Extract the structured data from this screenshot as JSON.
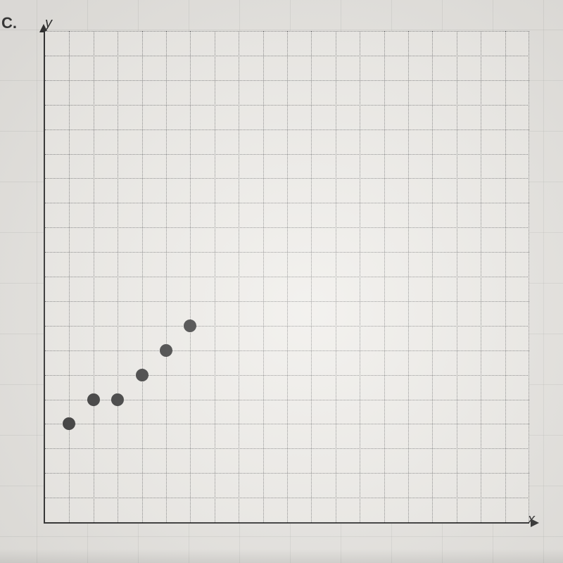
{
  "problem_label": "C.",
  "axes": {
    "y_label": "y",
    "x_label": "x"
  },
  "chart": {
    "type": "scatter",
    "xlim": [
      0,
      20
    ],
    "ylim": [
      0,
      20
    ],
    "grid_step": 1,
    "grid_color": "#888888",
    "grid_style": "dotted",
    "axis_color": "#333333",
    "axis_width": 2.5,
    "background_color": "#efede9",
    "page_background": "#e8e6e2",
    "points": [
      {
        "x": 1,
        "y": 4
      },
      {
        "x": 2,
        "y": 5
      },
      {
        "x": 3,
        "y": 5
      },
      {
        "x": 4,
        "y": 6
      },
      {
        "x": 5,
        "y": 7
      },
      {
        "x": 6,
        "y": 8
      }
    ],
    "point_color": "#3a3a3a",
    "point_radius": 9
  },
  "typography": {
    "label_fontsize": 22,
    "axis_label_fontsize": 20,
    "font_family": "Arial"
  }
}
